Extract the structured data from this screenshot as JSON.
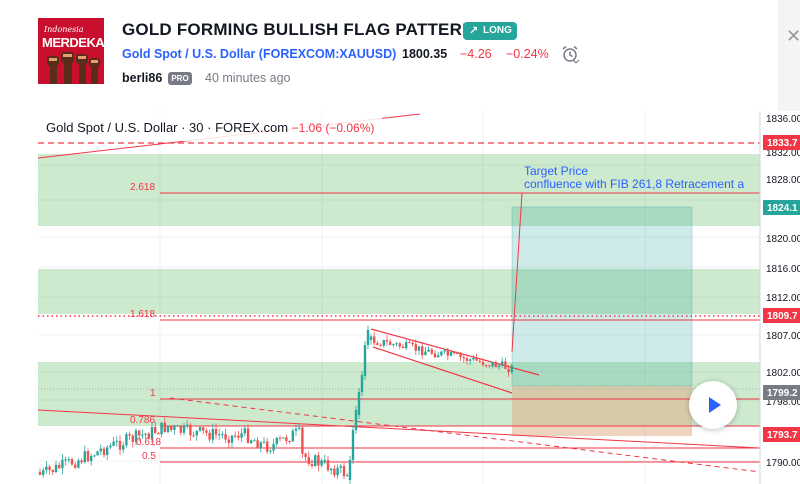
{
  "idea": {
    "title": "GOLD FORMING BULLISH FLAG PATTERN",
    "direction_badge": "LONG",
    "author": "berli86",
    "author_badge": "PRO",
    "published": "40 minutes ago",
    "avatar_text": "MERDEKA",
    "avatar_script": "Indonesia"
  },
  "symbol": {
    "link_text": "Gold Spot / U.S. Dollar (FOREXCOM:XAUUSD)",
    "price": "1800.35",
    "change": "−4.26",
    "change_percent": "−0.24%"
  },
  "chart": {
    "legend_symbol": "Gold Spot / U.S. Dollar · 30 · FOREX.com",
    "legend_change": "−1.06 (−0.06%)",
    "annotation_line1": "Target Price",
    "annotation_line2": "confluence with FIB 261,8 Retracement a",
    "fib_labels": [
      "2.618",
      "1.618",
      "1",
      "0.786",
      "0.618",
      "0.5"
    ],
    "price_ticks": [
      "1836.00",
      "1832.00",
      "1828.00",
      "1820.00",
      "1816.00",
      "1812.00",
      "1807.00",
      "1802.00",
      "1798.00",
      "1790.00"
    ],
    "price_tags": [
      {
        "text": "1833.7",
        "color": "#f23645"
      },
      {
        "text": "1824.1",
        "color": "#26a69a"
      },
      {
        "text": "1809.7",
        "color": "#f23645"
      },
      {
        "text": "1799.2",
        "color": "#787b86"
      },
      {
        "text": "1793.7",
        "color": "#f23645"
      }
    ]
  },
  "colors": {
    "bull": "#26a69a",
    "bear": "#ef5350",
    "zone": "#4caf50",
    "fib": "#f23645",
    "accent": "#2962ff"
  },
  "icons": [
    "close-icon",
    "trend-up-icon",
    "alarm-clock-icon",
    "play-icon"
  ]
}
